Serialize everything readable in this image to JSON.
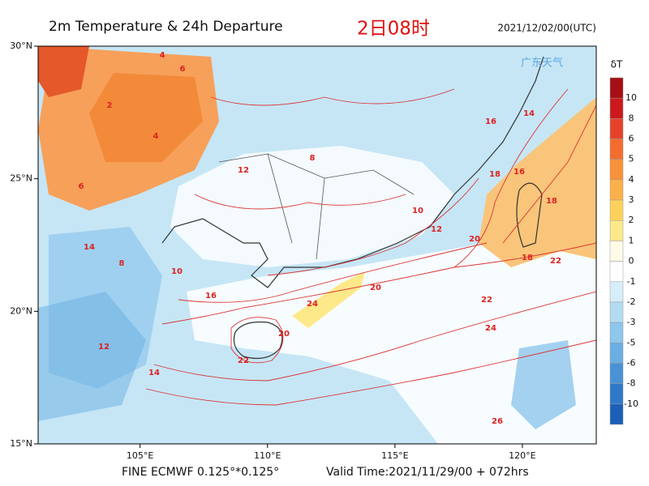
{
  "header": {
    "title": "2m Temperature & 24h Departure",
    "time_cn": "2日08时",
    "init_time": "2021/12/02/00(UTC)",
    "logo": "广东天气"
  },
  "footer": {
    "model": "FINE ECMWF 0.125°*0.125°",
    "valid": "Valid Time:2021/11/29/00 + 072hrs"
  },
  "map": {
    "lonlim": [
      101,
      122.9
    ],
    "latlim": [
      15,
      30
    ],
    "lon_ticks": [
      {
        "value": 105,
        "label": "105°E"
      },
      {
        "value": 110,
        "label": "110°E"
      },
      {
        "value": 115,
        "label": "115°E"
      },
      {
        "value": 120,
        "label": "120°E"
      }
    ],
    "lat_ticks": [
      {
        "value": 30,
        "label": "30°N"
      },
      {
        "value": 25,
        "label": "25°N"
      },
      {
        "value": 20,
        "label": "20°N"
      },
      {
        "value": 15,
        "label": "15°N"
      }
    ],
    "contour_labels": [
      4,
      6,
      2,
      4,
      6,
      8,
      10,
      12,
      14,
      16,
      18,
      20,
      22,
      24,
      26,
      10,
      12,
      14,
      16,
      18,
      20,
      22,
      24,
      20,
      18,
      16,
      14,
      12,
      8,
      22
    ]
  },
  "colorbar": {
    "title": "δT",
    "levels": [
      10,
      8,
      6,
      5,
      4,
      3,
      2,
      1,
      0,
      -1,
      -2,
      -3,
      -5,
      -6,
      -8,
      -10
    ],
    "colors": [
      "#a50f15",
      "#cb181d",
      "#e6422a",
      "#f46d2e",
      "#f7913a",
      "#fbb04a",
      "#fdd15c",
      "#fde989",
      "#fffbe8",
      "#ffffff",
      "#d6eefa",
      "#b3dcf3",
      "#8ec6ec",
      "#6aaee2",
      "#4a92d6",
      "#2f78c9",
      "#1c5fb8"
    ]
  }
}
